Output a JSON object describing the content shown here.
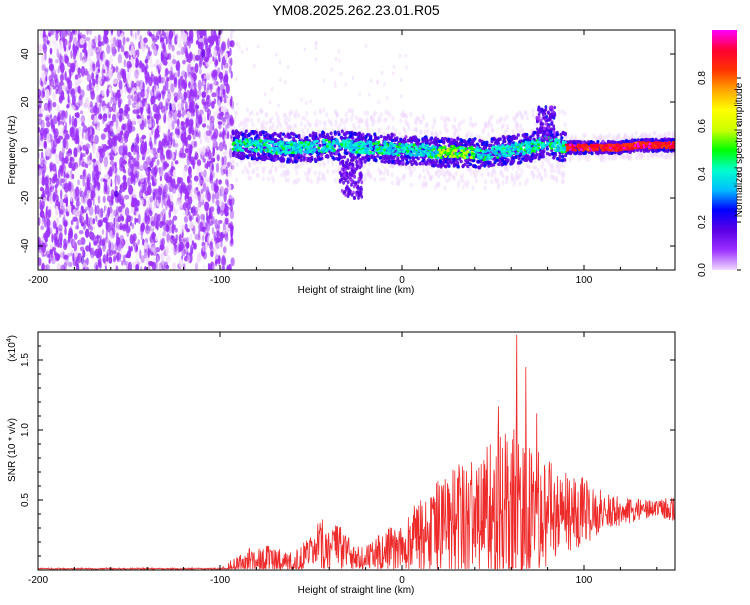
{
  "title": "YM08.2025.262.23.01.R05",
  "chart_data": [
    {
      "type": "heatmap",
      "name": "spectrogram",
      "xlabel": "Height of straight line (km)",
      "ylabel": "Frequency (Hz)",
      "xlim": [
        -200,
        150
      ],
      "ylim": [
        -50,
        50
      ],
      "xticks": [
        -200,
        -100,
        0,
        100
      ],
      "yticks": [
        -40,
        -20,
        0,
        20,
        40
      ],
      "noise_region_x": [
        -200,
        -93
      ],
      "signal_track": {
        "x": [
          -93,
          -80,
          -70,
          -60,
          -50,
          -40,
          -30,
          -25,
          -20,
          -10,
          0,
          10,
          20,
          30,
          40,
          45,
          50,
          60,
          70,
          75,
          80,
          85,
          90,
          100,
          110,
          120,
          130,
          140,
          150
        ],
        "y": [
          2,
          2,
          1,
          1,
          1,
          2,
          2,
          1,
          1,
          1,
          0,
          0,
          -1,
          -1,
          -1,
          -2,
          -1,
          0,
          1,
          2,
          4,
          2,
          1,
          1,
          1,
          1,
          2,
          2,
          2
        ]
      },
      "colorbar": {
        "label": "Normalized spectral amplitude",
        "range": [
          0.0,
          1.0
        ],
        "ticks": [
          "0.0",
          "0.2",
          "0.4",
          "0.6",
          "0.8"
        ],
        "colors": [
          "#f0d8ff",
          "#9b30ff",
          "#5a00e6",
          "#0000ff",
          "#00bfff",
          "#00ffcc",
          "#00ff00",
          "#ccff00",
          "#ffff00",
          "#ffa500",
          "#ff3300",
          "#ff0033",
          "#ff00ff"
        ]
      }
    },
    {
      "type": "line",
      "name": "snr",
      "xlabel": "Height of straight line (km)",
      "ylabel": "SNR (10 * v/v)",
      "y_multiplier": "(x10",
      "y_multiplier_exp": "4",
      "y_multiplier_close": ")",
      "xlim": [
        -200,
        150
      ],
      "ylim": [
        0,
        1.7
      ],
      "xticks": [
        -200,
        -100,
        0,
        100
      ],
      "yticks": [
        0.5,
        1.0,
        1.5
      ],
      "ytick_labels": [
        "0.5",
        "1.0",
        "1.5"
      ],
      "line_color": "#ee2b2b",
      "envelope": {
        "x": [
          -200,
          -100,
          -95,
          -90,
          -80,
          -70,
          -65,
          -60,
          -50,
          -45,
          -40,
          -30,
          -20,
          -10,
          0,
          10,
          20,
          30,
          40,
          50,
          55,
          60,
          65,
          70,
          80,
          90,
          100,
          110,
          120,
          130,
          140,
          150
        ],
        "base": [
          0.0,
          0.0,
          0.02,
          0.05,
          0.07,
          0.08,
          0.06,
          0.05,
          0.1,
          0.16,
          0.18,
          0.12,
          0.08,
          0.12,
          0.18,
          0.25,
          0.3,
          0.35,
          0.38,
          0.4,
          0.4,
          0.42,
          0.42,
          0.4,
          0.4,
          0.42,
          0.42,
          0.42,
          0.42,
          0.43,
          0.43,
          0.45
        ],
        "spread": [
          0.01,
          0.01,
          0.04,
          0.08,
          0.1,
          0.1,
          0.08,
          0.08,
          0.15,
          0.2,
          0.2,
          0.15,
          0.1,
          0.15,
          0.2,
          0.25,
          0.35,
          0.4,
          0.45,
          0.55,
          0.6,
          0.6,
          0.55,
          0.5,
          0.4,
          0.3,
          0.25,
          0.15,
          0.1,
          0.08,
          0.06,
          0.1
        ]
      },
      "peaks": [
        {
          "x": 53,
          "y": 1.17
        },
        {
          "x": 63,
          "y": 1.68
        },
        {
          "x": 68,
          "y": 1.45
        },
        {
          "x": 74,
          "y": 1.12
        }
      ]
    }
  ]
}
